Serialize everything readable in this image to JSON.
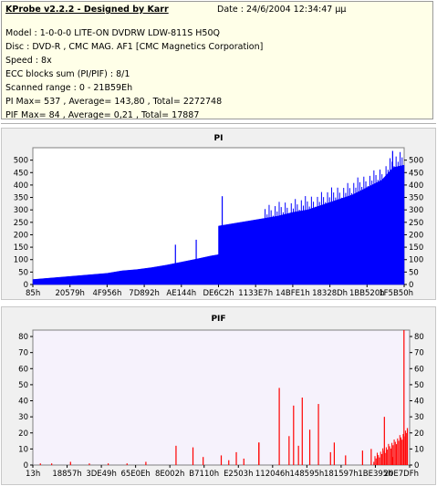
{
  "header": {
    "title": "KProbe v2.2.2 - Designed by Karr",
    "date": "Date : 24/6/2004 12:34:47 μμ",
    "lines": [
      "Model : 1-0-0-0 LITE-ON DVDRW LDW-811S   H50Q",
      "Disc : DVD-R , CMC MAG. AF1 [CMC Magnetics Corporation]",
      "Speed : 8x",
      "ECC blocks sum (PI/PIF) : 8/1",
      "Scanned range : 0 - 21B59Eh",
      "PI Max= 537 , Average= 143,80 , Total= 2272748",
      "PIF Max= 84 , Average= 0,21 , Total= 17887"
    ]
  },
  "colors": {
    "pi": "#0000ff",
    "pif": "#ff0000",
    "plot_bg_pi": "#ffffff",
    "plot_bg_pif": "#f6f2fc",
    "accent": "#1a1aa0"
  },
  "chart_data": [
    {
      "type": "area",
      "title": "PI",
      "ylim": [
        0,
        550
      ],
      "y_ticks": [
        0,
        50,
        100,
        150,
        200,
        250,
        300,
        350,
        400,
        450,
        500
      ],
      "x_ticks": [
        "85h",
        "20579h",
        "4F956h",
        "7D892h",
        "AE144h",
        "DE6C2h",
        "1133E7h",
        "14BFE1h",
        "18328Dh",
        "1BB520h",
        "1F5B50h"
      ],
      "series": [
        {
          "x": [
            0,
            0.04,
            0.08,
            0.12,
            0.16,
            0.2,
            0.24,
            0.28,
            0.32,
            0.36,
            0.4,
            0.44,
            0.48,
            0.5,
            0.5,
            0.54,
            0.58,
            0.62,
            0.66,
            0.7,
            0.74,
            0.78,
            0.82,
            0.86,
            0.9,
            0.94,
            0.97,
            1.0
          ],
          "values": [
            20,
            25,
            30,
            35,
            40,
            45,
            55,
            60,
            68,
            78,
            90,
            102,
            115,
            120,
            235,
            245,
            255,
            265,
            275,
            290,
            300,
            320,
            340,
            360,
            390,
            420,
            470,
            480
          ]
        }
      ],
      "spikes": [
        {
          "x": 0.51,
          "value": 355
        },
        {
          "x": 0.384,
          "value": 160
        },
        {
          "x": 0.44,
          "value": 180
        },
        {
          "x": 0.969,
          "value": 537
        }
      ]
    },
    {
      "type": "bar",
      "title": "PIF",
      "ylim": [
        0,
        84
      ],
      "y_ticks": [
        0,
        10,
        20,
        30,
        40,
        50,
        60,
        70,
        80
      ],
      "x_ticks": [
        "13h",
        "18857h",
        "3DE49h",
        "65E0Eh",
        "8E002h",
        "B7110h",
        "E2503h",
        "112046h",
        "148595h",
        "181597h",
        "1BE395h",
        "20E7DFh"
      ],
      "series": [
        {
          "x": [
            0.02,
            0.05,
            0.1,
            0.15,
            0.2,
            0.25,
            0.3,
            0.38,
            0.425,
            0.452,
            0.5,
            0.52,
            0.54,
            0.56,
            0.6,
            0.6,
            0.654,
            0.68,
            0.692,
            0.705,
            0.715,
            0.735,
            0.758,
            0.79,
            0.8,
            0.83,
            0.875,
            0.898,
            0.933,
            0.955,
            0.985,
            0.994
          ],
          "values": [
            1,
            1,
            2,
            1,
            1,
            1,
            2,
            12,
            11,
            5,
            6,
            3,
            8,
            4,
            14,
            14,
            48,
            18,
            37,
            12,
            42,
            22,
            38,
            8,
            14,
            6,
            9,
            10,
            30,
            5,
            84,
            23
          ]
        }
      ]
    }
  ]
}
